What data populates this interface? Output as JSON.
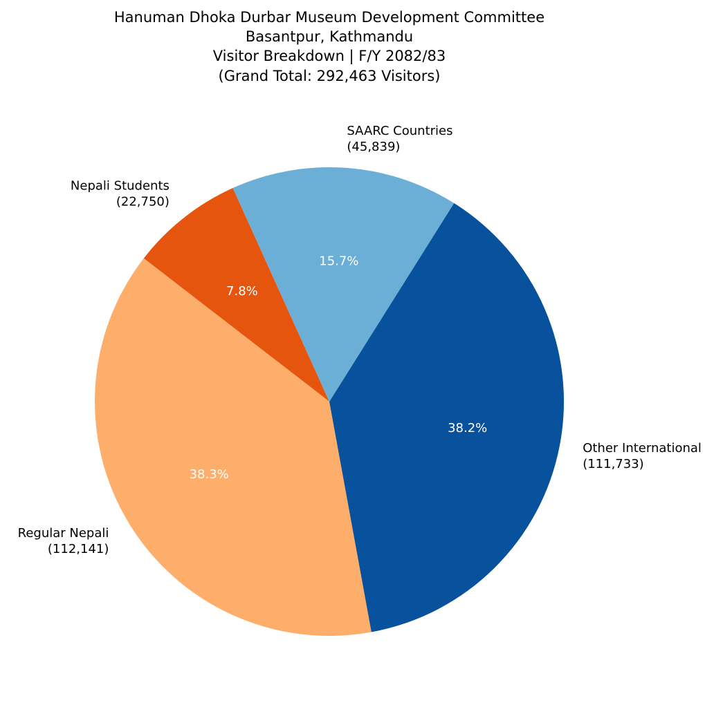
{
  "chart_data": {
    "type": "pie",
    "title": [
      "Hanuman Dhoka Durbar Museum Development Committee",
      "Basantpur, Kathmandu",
      "Visitor Breakdown | F/Y 2082/83",
      "(Grand Total: 292,463 Visitors)"
    ],
    "start_angle_deg": 114.3,
    "direction": "counterclockwise",
    "slices": [
      {
        "label": "Nepali Students",
        "value": 22750,
        "value_text": "(22,750)",
        "percent_text": "7.8%",
        "color": "#e6550d"
      },
      {
        "label": "Regular Nepali",
        "value": 112141,
        "value_text": "(112,141)",
        "percent_text": "38.3%",
        "color": "#fdae6b"
      },
      {
        "label": "Other International",
        "value": 111733,
        "value_text": "(111,733)",
        "percent_text": "38.2%",
        "color": "#08519c"
      },
      {
        "label": "SAARC Countries",
        "value": 45839,
        "value_text": "(45,839)",
        "percent_text": "15.7%",
        "color": "#6baed6"
      }
    ]
  }
}
